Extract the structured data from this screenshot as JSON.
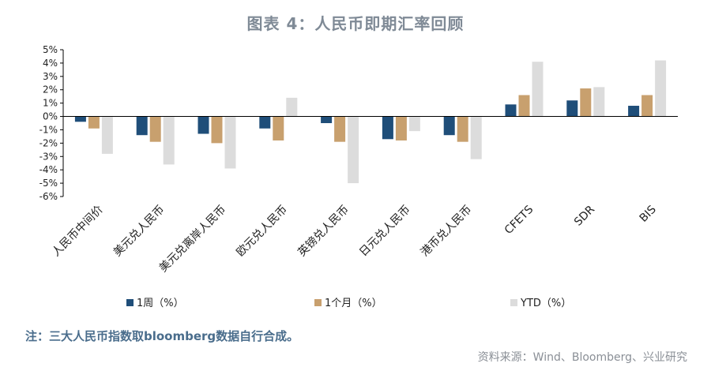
{
  "title": "图表 4：人民币即期汇率回顾",
  "note": "注：三大人民币指数取bloomberg数据自行合成。",
  "source": "资料来源：Wind、Bloomberg、兴业研究",
  "colors": {
    "s1": "#1f4e79",
    "s2": "#c8a06e",
    "s3": "#dcdcdc",
    "axis": "#000000"
  },
  "chart_data": {
    "type": "bar",
    "categories": [
      "人民币中间价",
      "美元兑人民币",
      "美元兑离岸人民币",
      "欧元兑人民币",
      "英镑兑人民币",
      "日元兑人民币",
      "港币兑人民币",
      "CFETS",
      "SDR",
      "BIS"
    ],
    "series": [
      {
        "name": "1周（%）",
        "values": [
          -0.4,
          -1.4,
          -1.3,
          -0.9,
          -0.5,
          -1.7,
          -1.4,
          0.9,
          1.2,
          0.8
        ]
      },
      {
        "name": "1个月（%）",
        "values": [
          -0.9,
          -1.9,
          -2.0,
          -1.8,
          -1.9,
          -1.8,
          -1.9,
          1.6,
          2.1,
          1.6
        ]
      },
      {
        "name": "YTD（%）",
        "values": [
          -2.8,
          -3.6,
          -3.9,
          1.4,
          -5.0,
          -1.1,
          -3.2,
          4.1,
          2.2,
          4.2
        ]
      }
    ],
    "ylim": [
      -6,
      5
    ],
    "yticks": [
      "-6%",
      "-5%",
      "-4%",
      "-3%",
      "-2%",
      "-1%",
      "0%",
      "1%",
      "2%",
      "3%",
      "4%",
      "5%"
    ],
    "legend_position": "bottom",
    "grid": false
  }
}
